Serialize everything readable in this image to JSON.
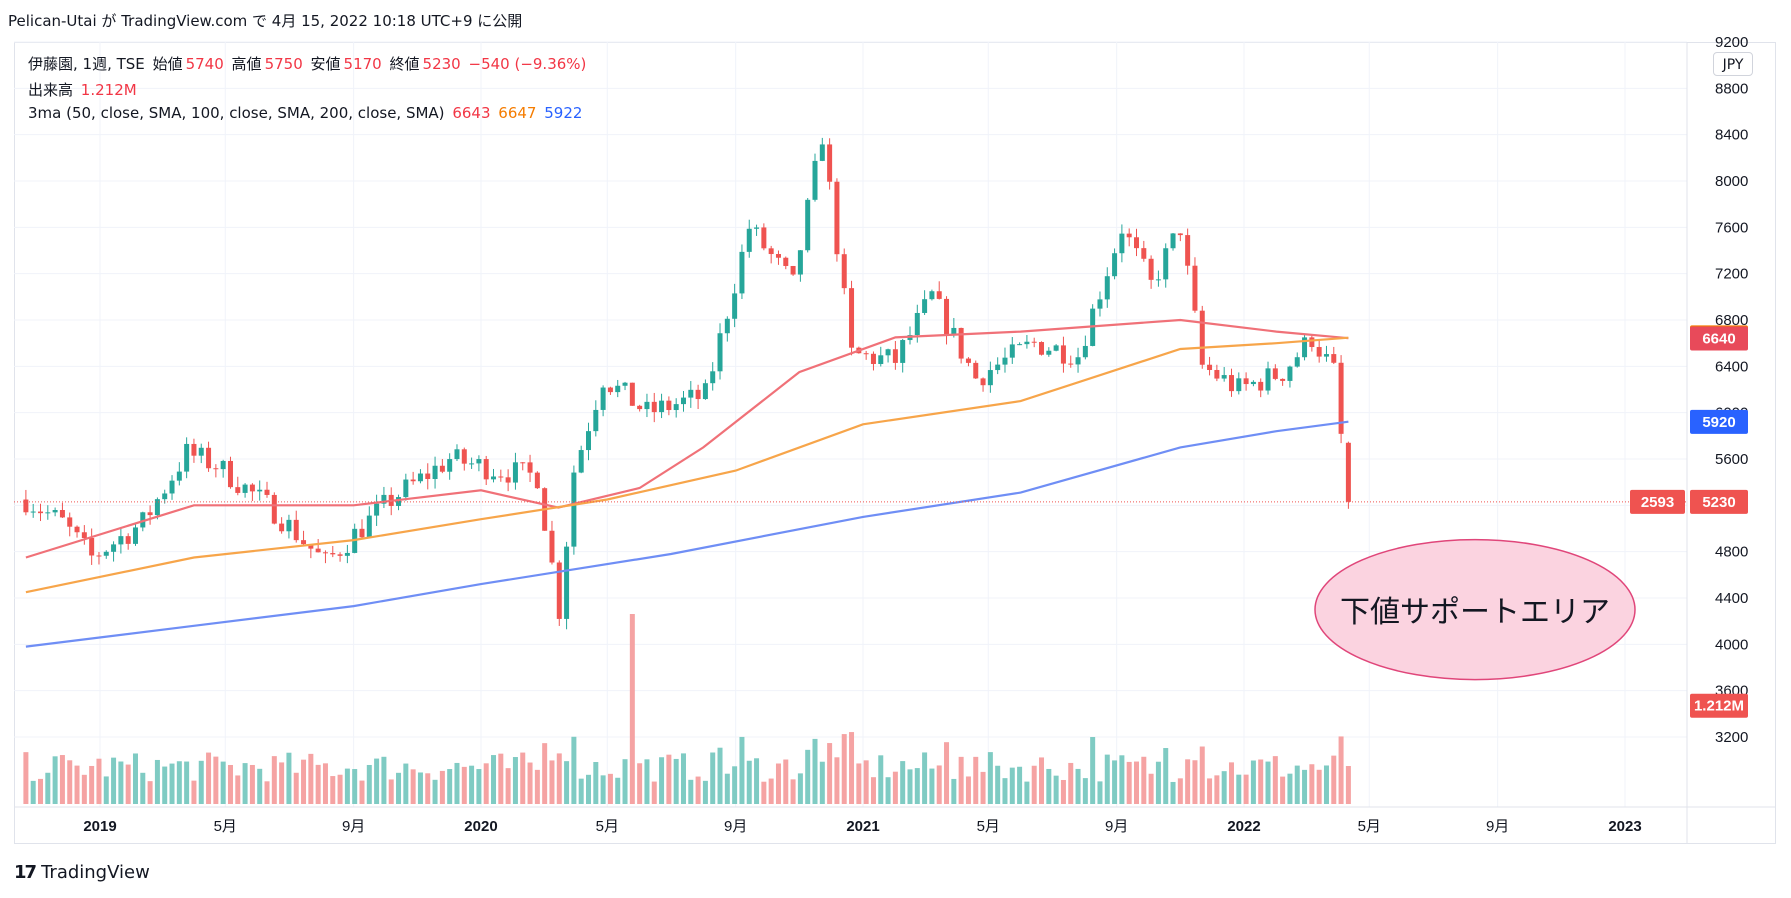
{
  "header": {
    "text": "Pelican-Utai が TradingView.com で 4月 15, 2022 10:18 UTC+9 に公開"
  },
  "legend": {
    "symbol": "伊藤園, 1週, TSE",
    "open_label": "始値",
    "open_value": "5740",
    "high_label": "高値",
    "high_value": "5750",
    "low_label": "安値",
    "low_value": "5170",
    "close_label": "終値",
    "close_value": "5230",
    "change": "−540 (−9.36%)",
    "volume_label": "出来高",
    "volume_value": "1.212M",
    "ma_label": "3ma (50, close, SMA, 100, close, SMA, 200, close, SMA)",
    "ma50_value": "6643",
    "ma100_value": "6647",
    "ma200_value": "5922"
  },
  "currency": "JPY",
  "footer": {
    "brand": "TradingView",
    "logo_glyph": "17"
  },
  "annotation": {
    "text": "下値サポートエリア"
  },
  "colors": {
    "up": "#26a69a",
    "down": "#ef5350",
    "vol_up": "#7fcbc3",
    "vol_down": "#f5a3a3",
    "ma50": "#f07178",
    "ma100": "#f7a54a",
    "ma200": "#6f8ef5",
    "badge_orange": "#f57c00",
    "badge_red": "#e84a5a",
    "badge_blue": "#2962ff",
    "badge_close": "#ef5350"
  },
  "chart_data": {
    "type": "candlestick",
    "interval": "1週",
    "symbol": "伊藤園 (TSE)",
    "y_axis": {
      "ticks": [
        3200,
        3600,
        4000,
        4400,
        4800,
        5200,
        5600,
        6000,
        6400,
        6800,
        7200,
        7600,
        8000,
        8400,
        8800,
        9200
      ],
      "position": "right"
    },
    "x_axis": {
      "ticks": [
        "2019",
        "5月",
        "9月",
        "2020",
        "5月",
        "9月",
        "2021",
        "5月",
        "9月",
        "2022",
        "5月",
        "9月",
        "2023"
      ],
      "bold": [
        "2019",
        "2020",
        "2021",
        "2022",
        "2023"
      ]
    },
    "keypoints": [
      {
        "date": "2018-10-22",
        "price": 5250
      },
      {
        "date": "2018-11-26",
        "price": 5050
      },
      {
        "date": "2018-12-24",
        "price": 4750
      },
      {
        "date": "2019-02-11",
        "price": 5050
      },
      {
        "date": "2019-03-25",
        "price": 5650
      },
      {
        "date": "2019-04-22",
        "price": 5550
      },
      {
        "date": "2019-06-17",
        "price": 5150
      },
      {
        "date": "2019-08-05",
        "price": 4700
      },
      {
        "date": "2019-09-02",
        "price": 4950
      },
      {
        "date": "2019-10-07",
        "price": 5250
      },
      {
        "date": "2019-12-02",
        "price": 5600
      },
      {
        "date": "2020-01-20",
        "price": 5500
      },
      {
        "date": "2020-02-24",
        "price": 5450
      },
      {
        "date": "2020-03-16",
        "price": 4300
      },
      {
        "date": "2020-03-30",
        "price": 5500
      },
      {
        "date": "2020-04-27",
        "price": 6300
      },
      {
        "date": "2020-06-08",
        "price": 6000
      },
      {
        "date": "2020-08-03",
        "price": 6150
      },
      {
        "date": "2020-09-14",
        "price": 7600
      },
      {
        "date": "2020-10-26",
        "price": 7100
      },
      {
        "date": "2020-11-23",
        "price": 8400
      },
      {
        "date": "2020-12-21",
        "price": 6500
      },
      {
        "date": "2021-02-01",
        "price": 6450
      },
      {
        "date": "2021-03-08",
        "price": 7000
      },
      {
        "date": "2021-04-19",
        "price": 6300
      },
      {
        "date": "2021-06-14",
        "price": 6600
      },
      {
        "date": "2021-07-26",
        "price": 6500
      },
      {
        "date": "2021-09-06",
        "price": 7600
      },
      {
        "date": "2021-10-04",
        "price": 7100
      },
      {
        "date": "2021-11-01",
        "price": 7600
      },
      {
        "date": "2021-11-22",
        "price": 6400
      },
      {
        "date": "2021-12-27",
        "price": 6200
      },
      {
        "date": "2022-02-07",
        "price": 6350
      },
      {
        "date": "2022-03-07",
        "price": 6650
      },
      {
        "date": "2022-03-28",
        "price": 6350
      },
      {
        "date": "2022-04-11",
        "price": 5230
      }
    ],
    "last_bar": {
      "date": "2022-04-11",
      "open": 5740,
      "high": 5750,
      "low": 5170,
      "close": 5230,
      "change": -540,
      "change_pct": -9.36,
      "volume": "1.212M"
    },
    "series": [
      {
        "name": "50",
        "last": 6643
      },
      {
        "name": "100",
        "last": 6647
      },
      {
        "name": "200",
        "last": 5922
      }
    ],
    "price_labels": [
      {
        "value": "6650",
        "series": "100"
      },
      {
        "value": "6640",
        "series": "50"
      },
      {
        "value": "5920",
        "series": "200"
      },
      {
        "value": "2593",
        "series": "countdown"
      },
      {
        "value": "5230",
        "series": "close"
      },
      {
        "value": "1.212M",
        "series": "volume"
      }
    ],
    "grid": true,
    "annotation_ellipse": {
      "text": "下値サポートエリア",
      "price_center": 4300
    }
  }
}
